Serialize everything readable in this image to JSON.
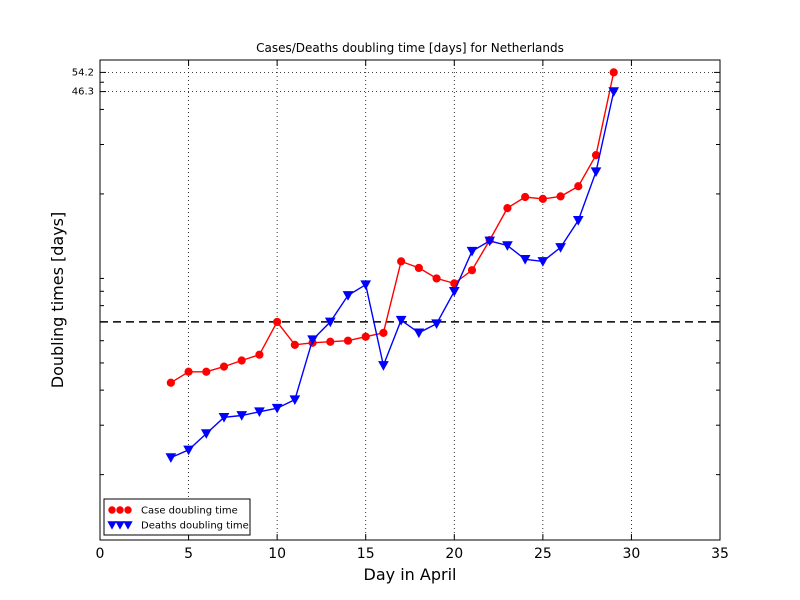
{
  "chart_data": {
    "type": "line",
    "title": "Cases/Deaths doubling time [days] for Netherlands",
    "xlabel": "Day in April",
    "ylabel": "Doubling times [days]",
    "xlim": [
      0,
      35
    ],
    "xticks": [
      0,
      5,
      10,
      15,
      20,
      25,
      30,
      35
    ],
    "ylim": [
      1.17,
      60
    ],
    "yscale": "log",
    "marked_y_values": [
      54.2,
      46.3
    ],
    "marked_y_labels": [
      "54.2",
      "46.3"
    ],
    "reference_line_y": 7.0,
    "grid": "dotted, x at major ticks and y at marked values",
    "legend_position": "lower-left",
    "series": [
      {
        "name": "Case doubling time",
        "color": "#ff0000",
        "marker": "circle",
        "x": [
          4,
          5,
          6,
          7,
          8,
          9,
          10,
          11,
          12,
          13,
          14,
          15,
          16,
          17,
          18,
          19,
          20,
          21,
          22,
          23,
          24,
          25,
          26,
          27,
          28,
          29
        ],
        "y": [
          4.25,
          4.65,
          4.65,
          4.85,
          5.1,
          5.35,
          7.0,
          5.8,
          5.9,
          5.95,
          6.0,
          6.2,
          6.4,
          11.5,
          10.9,
          10.0,
          9.6,
          10.7,
          13.7,
          17.8,
          19.5,
          19.2,
          19.6,
          21.3,
          27.5,
          54.2
        ]
      },
      {
        "name": "Deaths doubling time",
        "color": "#0000ff",
        "marker": "triangle-down",
        "x": [
          4,
          5,
          6,
          7,
          8,
          9,
          10,
          11,
          12,
          13,
          14,
          15,
          16,
          17,
          18,
          19,
          20,
          21,
          22,
          23,
          24,
          25,
          26,
          27,
          28,
          29
        ],
        "y": [
          2.3,
          2.45,
          2.8,
          3.2,
          3.25,
          3.35,
          3.45,
          3.7,
          6.05,
          7.0,
          8.7,
          9.5,
          4.9,
          7.1,
          6.4,
          6.9,
          9.0,
          12.5,
          13.6,
          13.1,
          11.7,
          11.5,
          12.9,
          16.1,
          24.0,
          46.3
        ]
      }
    ]
  }
}
